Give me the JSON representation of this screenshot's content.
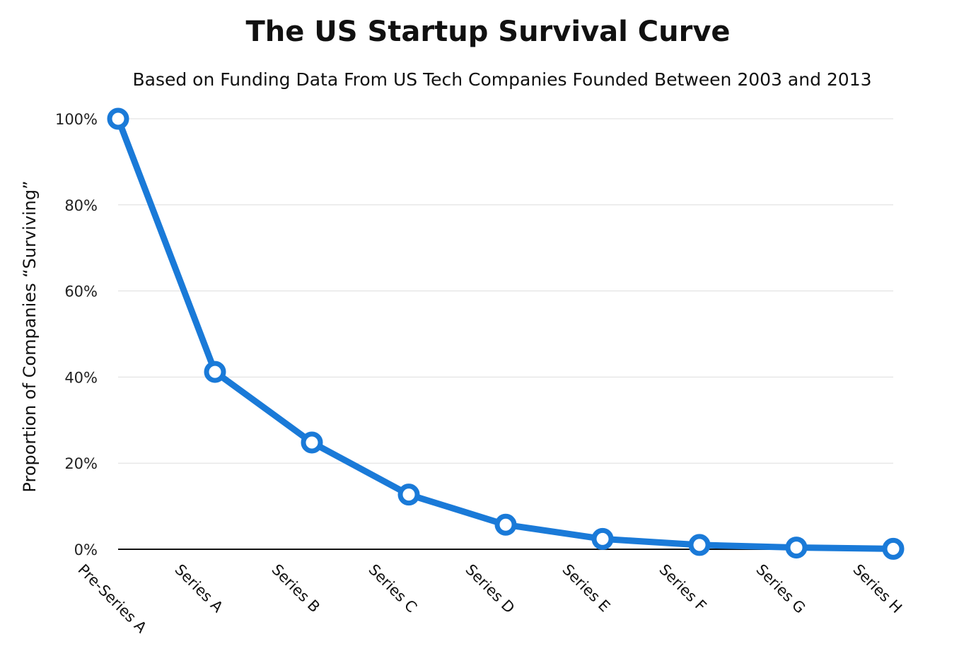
{
  "chart_data": {
    "type": "line",
    "title": "The US Startup Survival Curve",
    "subtitle": "Based on Funding Data From US Tech Companies Founded Between 2003 and 2013",
    "xlabel": "",
    "ylabel": "Proportion of Companies “Surviving”",
    "categories": [
      "Pre-Series A",
      "Series A",
      "Series B",
      "Series C",
      "Series D",
      "Series E",
      "Series F",
      "Series G",
      "Series H"
    ],
    "series": [
      {
        "values": [
          100,
          41.2,
          24.8,
          12.7,
          5.7,
          2.4,
          1.0,
          0.4,
          0.1
        ]
      }
    ],
    "ylim": [
      0,
      100
    ],
    "yticks": [
      "0%",
      "20%",
      "40%",
      "60%",
      "80%",
      "100%"
    ],
    "grid": true,
    "legend": "none",
    "colors": {
      "line": "#1a7ad8",
      "grid": "#dddddd",
      "axis": "#111111"
    }
  }
}
